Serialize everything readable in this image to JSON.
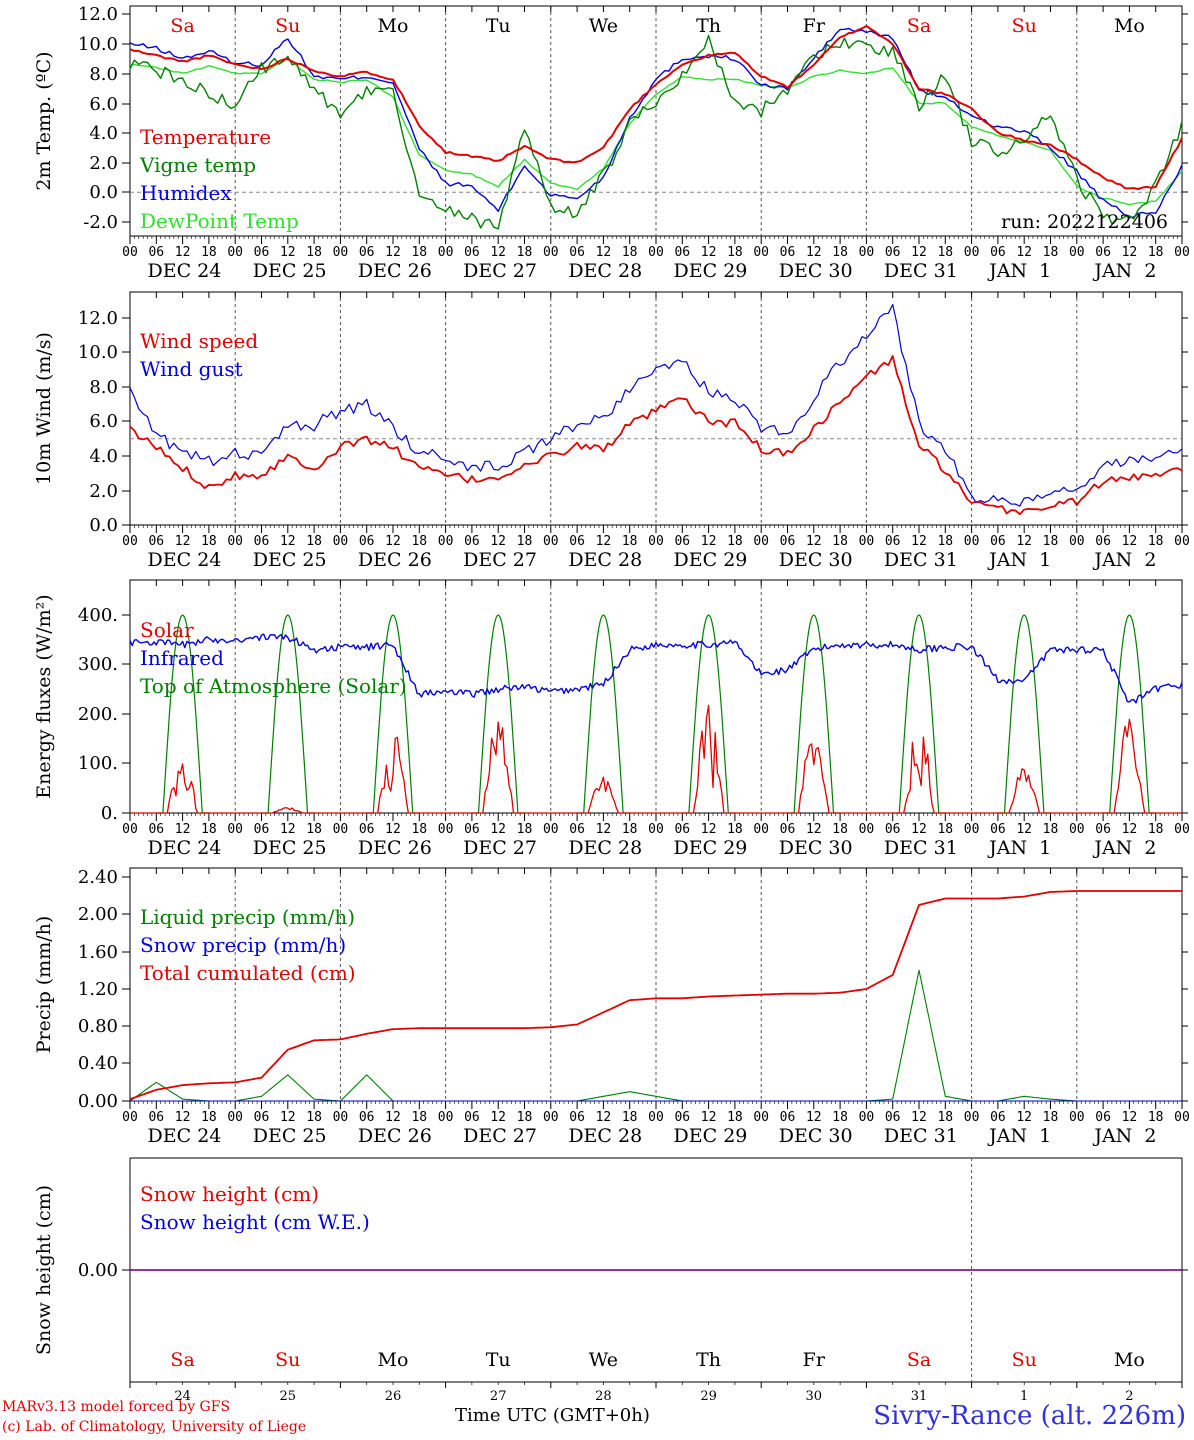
{
  "chart_data": [
    {
      "type": "line",
      "ylabel": "2m Temp. (ºC)",
      "ylim": [
        -3,
        12
      ],
      "yticks": [
        "12.0",
        "10.0",
        "8.0",
        "6.0",
        "4.0",
        "2.0",
        "0.0",
        "-2.0"
      ],
      "ref_line": 0,
      "annotation": "run: 2022122406",
      "day_names": [
        "Sa",
        "Su",
        "Mo",
        "Tu",
        "We",
        "Th",
        "Fr",
        "Sa",
        "Su",
        "Mo"
      ],
      "date_labels": [
        "DEC 24",
        "DEC 25",
        "DEC 26",
        "DEC 27",
        "DEC 28",
        "DEC 29",
        "DEC 30",
        "DEC 31",
        "JAN  1",
        "JAN  2"
      ],
      "hour_labels": [
        "00",
        "06",
        "12",
        "18"
      ],
      "x_hours": [
        0,
        6,
        12,
        18,
        24,
        30,
        36,
        42,
        48,
        54,
        60,
        66,
        72,
        78,
        84,
        90,
        96,
        102,
        108,
        114,
        120,
        126,
        132,
        138,
        144,
        150,
        156,
        162,
        168,
        174,
        180,
        186,
        192,
        198,
        204,
        210,
        216,
        222,
        228,
        234,
        240
      ],
      "series": [
        {
          "name": "Temperature",
          "color": "#e00000",
          "values": [
            9.6,
            9.2,
            8.8,
            9.2,
            8.6,
            8.3,
            9.0,
            8.2,
            7.8,
            8.1,
            7.6,
            4.5,
            2.7,
            2.4,
            2.1,
            3.1,
            2.2,
            2.0,
            3.0,
            5.6,
            7.3,
            8.6,
            9.2,
            9.4,
            7.8,
            7.1,
            8.6,
            10.4,
            11.2,
            10.0,
            7.0,
            6.6,
            5.6,
            4.0,
            3.5,
            3.2,
            2.2,
            1.0,
            0.2,
            0.4,
            3.6
          ]
        },
        {
          "name": "Vigne temp",
          "color": "#008000",
          "values": [
            8.6,
            8.2,
            7.6,
            6.6,
            5.8,
            8.4,
            8.8,
            7.2,
            5.0,
            7.0,
            6.6,
            0.0,
            -1.2,
            -1.8,
            -2.3,
            4.3,
            -1.0,
            -1.4,
            1.1,
            4.5,
            6.2,
            8.0,
            10.3,
            5.8,
            5.5,
            7.0,
            8.9,
            10.2,
            9.7,
            9.4,
            5.9,
            8.0,
            3.3,
            2.8,
            3.2,
            5.4,
            0.8,
            -1.6,
            -2.0,
            0.5,
            4.6
          ]
        },
        {
          "name": "Humidex",
          "color": "#0000e0",
          "values": [
            10.0,
            9.7,
            9.0,
            9.5,
            8.7,
            8.6,
            10.4,
            7.8,
            7.6,
            7.8,
            7.4,
            2.9,
            0.6,
            0.4,
            -1.2,
            1.8,
            -0.2,
            -0.4,
            1.0,
            5.0,
            7.6,
            9.0,
            9.2,
            9.0,
            7.2,
            7.0,
            9.0,
            11.0,
            10.8,
            10.4,
            6.9,
            6.3,
            5.2,
            4.4,
            4.1,
            3.0,
            1.4,
            -0.6,
            -1.6,
            -1.4,
            1.8
          ]
        },
        {
          "name": "DewPoint Temp",
          "color": "#30e030",
          "values": [
            8.6,
            8.4,
            8.0,
            8.5,
            8.0,
            8.0,
            9.0,
            7.6,
            7.4,
            7.6,
            6.4,
            2.5,
            1.5,
            1.2,
            0.4,
            2.2,
            0.6,
            0.2,
            1.6,
            4.6,
            6.6,
            7.8,
            7.6,
            7.6,
            7.2,
            7.0,
            7.8,
            8.2,
            8.0,
            8.4,
            6.0,
            6.0,
            4.4,
            3.8,
            3.4,
            2.8,
            0.4,
            -0.4,
            -0.8,
            -0.6,
            1.4
          ]
        }
      ]
    },
    {
      "type": "line",
      "ylabel": "10m Wind (m/s)",
      "ylim": [
        0,
        13
      ],
      "yticks": [
        "0.0",
        "2.0",
        "4.0",
        "6.0",
        "8.0",
        "10.0",
        "12.0"
      ],
      "ref_line": 5,
      "date_labels": [
        "DEC 24",
        "DEC 25",
        "DEC 26",
        "DEC 27",
        "DEC 28",
        "DEC 29",
        "DEC 30",
        "DEC 31",
        "JAN  1",
        "JAN  2"
      ],
      "hour_labels": [
        "00",
        "06",
        "12",
        "18"
      ],
      "x_hours": [
        0,
        6,
        12,
        18,
        24,
        30,
        36,
        42,
        48,
        54,
        60,
        66,
        72,
        78,
        84,
        90,
        96,
        102,
        108,
        114,
        120,
        126,
        132,
        138,
        144,
        150,
        156,
        162,
        168,
        174,
        180,
        186,
        192,
        198,
        204,
        210,
        216,
        222,
        228,
        234,
        240
      ],
      "series": [
        {
          "name": "Wind speed",
          "color": "#e00000",
          "values": [
            5.5,
            4.5,
            3.3,
            2.2,
            2.9,
            2.9,
            4.0,
            3.3,
            4.5,
            5.0,
            4.5,
            3.3,
            2.9,
            2.6,
            2.8,
            3.4,
            4.0,
            4.6,
            4.4,
            5.8,
            6.6,
            7.3,
            6.0,
            5.9,
            4.4,
            4.1,
            5.6,
            7.1,
            8.6,
            9.6,
            4.6,
            3.2,
            1.2,
            0.9,
            0.8,
            1.1,
            1.4,
            2.5,
            2.7,
            3.0,
            3.4
          ]
        },
        {
          "name": "Wind gust",
          "color": "#0000e0",
          "values": [
            8.0,
            5.2,
            4.3,
            3.7,
            4.2,
            4.0,
            5.7,
            5.8,
            6.6,
            7.0,
            5.6,
            4.2,
            3.9,
            3.4,
            3.5,
            4.2,
            5.0,
            5.8,
            6.2,
            8.0,
            8.8,
            9.4,
            7.8,
            7.2,
            5.6,
            5.3,
            7.4,
            9.4,
            11.0,
            12.6,
            5.9,
            4.4,
            1.6,
            1.4,
            1.3,
            1.7,
            2.0,
            3.3,
            3.7,
            4.0,
            4.6
          ]
        }
      ]
    },
    {
      "type": "line",
      "ylabel": "Energy fluxes (W/m²)",
      "ylim": [
        0,
        440
      ],
      "yticks": [
        "0.",
        "100.",
        "200.",
        "300.",
        "400."
      ],
      "date_labels": [
        "DEC 24",
        "DEC 25",
        "DEC 26",
        "DEC 27",
        "DEC 28",
        "DEC 29",
        "DEC 30",
        "DEC 31",
        "JAN  1",
        "JAN  2"
      ],
      "hour_labels": [
        "00",
        "06",
        "12",
        "18"
      ],
      "x_hours": [
        0,
        6,
        12,
        18,
        24,
        30,
        36,
        42,
        48,
        54,
        60,
        66,
        72,
        78,
        84,
        90,
        96,
        102,
        108,
        114,
        120,
        126,
        132,
        138,
        144,
        150,
        156,
        162,
        168,
        174,
        180,
        186,
        192,
        198,
        204,
        210,
        216,
        222,
        228,
        234,
        240
      ],
      "solar_peaks": [
        140,
        12,
        180,
        200,
        75,
        220,
        170,
        220,
        95,
        195
      ],
      "toa_peak": 400,
      "series": [
        {
          "name": "Solar",
          "color": "#e00000"
        },
        {
          "name": "Infrared",
          "color": "#0000e0",
          "values": [
            345,
            345,
            340,
            350,
            350,
            355,
            355,
            330,
            335,
            335,
            340,
            240,
            245,
            240,
            250,
            255,
            245,
            250,
            260,
            330,
            340,
            340,
            340,
            345,
            280,
            290,
            330,
            340,
            340,
            340,
            330,
            335,
            335,
            270,
            265,
            330,
            330,
            330,
            220,
            250,
            260
          ]
        },
        {
          "name": "Top of Atmosphere (Solar)",
          "color": "#008000"
        }
      ]
    },
    {
      "type": "line",
      "ylabel": "Precip (mm/h)",
      "ylim": [
        0,
        2.4
      ],
      "yticks": [
        "0.00",
        "0.40",
        "0.80",
        "1.20",
        "1.60",
        "2.00",
        "2.40"
      ],
      "date_labels": [
        "DEC 24",
        "DEC 25",
        "DEC 26",
        "DEC 27",
        "DEC 28",
        "DEC 29",
        "DEC 30",
        "DEC 31",
        "JAN  1",
        "JAN  2"
      ],
      "hour_labels": [
        "00",
        "06",
        "12",
        "18"
      ],
      "x_hours": [
        0,
        6,
        12,
        18,
        24,
        30,
        36,
        42,
        48,
        54,
        60,
        66,
        72,
        78,
        84,
        90,
        96,
        102,
        108,
        114,
        120,
        126,
        132,
        138,
        144,
        150,
        156,
        162,
        168,
        174,
        180,
        186,
        192,
        198,
        204,
        210,
        216,
        222,
        228,
        234,
        240
      ],
      "series": [
        {
          "name": "Liquid precip (mm/h)",
          "color": "#008000",
          "values": [
            0,
            0.2,
            0.02,
            0,
            0,
            0.05,
            0.28,
            0.02,
            0,
            0.28,
            0,
            0,
            0,
            0,
            0,
            0,
            0,
            0,
            0.05,
            0.1,
            0.05,
            0,
            0,
            0,
            0,
            0,
            0,
            0,
            0,
            0.02,
            1.4,
            0.05,
            0,
            0,
            0.05,
            0.02,
            0,
            0,
            0,
            0,
            0
          ]
        },
        {
          "name": "Snow precip (mm/h)",
          "color": "#0000e0",
          "values": [
            0,
            0,
            0,
            0,
            0,
            0,
            0,
            0,
            0,
            0,
            0,
            0,
            0,
            0,
            0,
            0,
            0,
            0,
            0,
            0,
            0,
            0,
            0,
            0,
            0,
            0,
            0,
            0,
            0,
            0,
            0,
            0,
            0,
            0,
            0,
            0,
            0,
            0,
            0,
            0,
            0
          ]
        },
        {
          "name": "Total cumulated (cm)",
          "color": "#e00000",
          "values": [
            0.02,
            0.12,
            0.17,
            0.19,
            0.2,
            0.25,
            0.55,
            0.65,
            0.66,
            0.72,
            0.77,
            0.78,
            0.78,
            0.78,
            0.78,
            0.78,
            0.79,
            0.82,
            0.95,
            1.08,
            1.1,
            1.1,
            1.12,
            1.13,
            1.14,
            1.15,
            1.15,
            1.16,
            1.2,
            1.35,
            2.1,
            2.17,
            2.17,
            2.17,
            2.19,
            2.24,
            2.25,
            2.25,
            2.25,
            2.25,
            2.25
          ]
        }
      ]
    },
    {
      "type": "line",
      "ylabel": "Snow height (cm)",
      "ylim": [
        -1,
        1
      ],
      "yticks": [
        "0.00"
      ],
      "day_names": [
        "Sa",
        "Su",
        "Mo",
        "Tu",
        "We",
        "Th",
        "Fr",
        "Sa",
        "Su",
        "Mo"
      ],
      "day_numbers": [
        "24",
        "25",
        "26",
        "27",
        "28",
        "29",
        "30",
        "31",
        "1",
        "2"
      ],
      "series": [
        {
          "name": "Snow height (cm)",
          "color": "#e00000",
          "values": [
            0,
            0
          ]
        },
        {
          "name": "Snow height (cm W.E.)",
          "color": "#0000e0",
          "values": [
            0,
            0
          ]
        }
      ]
    }
  ],
  "colors": {
    "weekend": "#e00000",
    "weekday": "#000000",
    "station": "#3030e0",
    "credit": "#e00000"
  },
  "footer": {
    "credit_line1": "MARv3.13 model forced by GFS",
    "credit_line2": "(c) Lab. of Climatology, University of Liege",
    "time_label": "Time UTC (GMT+0h)",
    "station": "Sivry-Rance (alt. 226m)"
  }
}
